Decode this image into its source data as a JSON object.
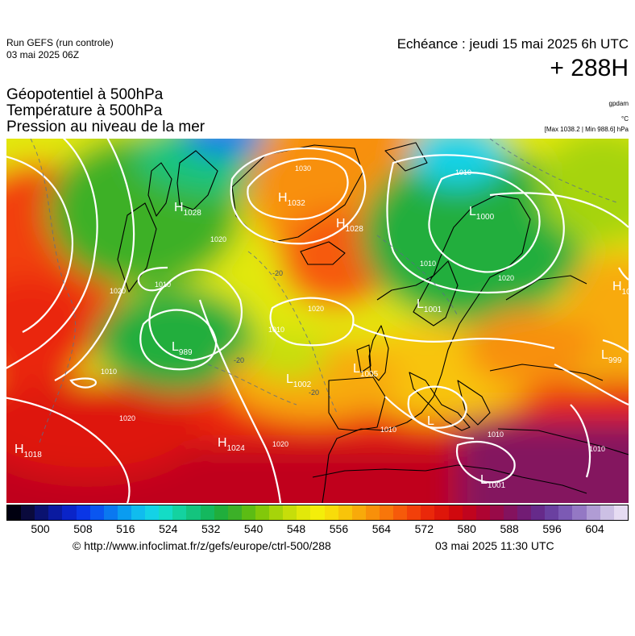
{
  "header": {
    "run_name": "Run GEFS (run controle)",
    "run_date": "03 mai 2025 06Z",
    "echeance": "Echéance : jeudi 15 mai 2025 6h UTC",
    "horizon": "+ 288H"
  },
  "titles": {
    "line1": "Géopotentiel à 500hPa",
    "line2": "Température à 500hPa",
    "line3": "Pression au niveau de la mer"
  },
  "units": {
    "geopotential": "gpdam",
    "temperature": "°C",
    "pressure": "[Max 1038.2 | Min 988.6] hPa"
  },
  "colorbar": {
    "ticks": [
      "500",
      "508",
      "516",
      "524",
      "532",
      "540",
      "548",
      "556",
      "564",
      "572",
      "580",
      "588",
      "596",
      "604"
    ],
    "colors": [
      "#000010",
      "#0a0a3c",
      "#0a1270",
      "#0a1aa0",
      "#0a24c8",
      "#0a36e6",
      "#0a56f0",
      "#0a78f0",
      "#0a9cf0",
      "#10bcee",
      "#14d2e6",
      "#14dcc6",
      "#14d2a0",
      "#14c47e",
      "#14b85e",
      "#20ae3c",
      "#3cb028",
      "#5cbc14",
      "#82c80a",
      "#a6d40a",
      "#c6de0a",
      "#e2e80a",
      "#f4ee0a",
      "#f8dc0a",
      "#f8c40a",
      "#f8aa0a",
      "#f8900a",
      "#f8760a",
      "#f65a0a",
      "#f2400a",
      "#ea280a",
      "#de160a",
      "#d0080e",
      "#c0041e",
      "#ae0432",
      "#980a48",
      "#84125e",
      "#721c74",
      "#662a8a",
      "#6a40a0",
      "#7c5ab4",
      "#9478c4",
      "#b09cd4",
      "#ccc0e4",
      "#e6dcf2"
    ]
  },
  "pressure_centers": [
    {
      "type": "H",
      "value": "1032"
    },
    {
      "type": "H",
      "value": "1028"
    },
    {
      "type": "H",
      "value": "1028"
    },
    {
      "type": "L",
      "value": "1000"
    },
    {
      "type": "L",
      "value": "989"
    },
    {
      "type": "L",
      "value": "1002"
    },
    {
      "type": "L",
      "value": "1005"
    },
    {
      "type": "L",
      "value": "1001"
    },
    {
      "type": "L",
      "value": "1001"
    },
    {
      "type": "L",
      "value": "999"
    },
    {
      "type": "H",
      "value": "10"
    },
    {
      "type": "H",
      "value": "1018"
    },
    {
      "type": "H",
      "value": "1024"
    },
    {
      "type": "L",
      "value": ""
    }
  ],
  "isobar_labels": [
    "1030",
    "1010",
    "1020",
    "1010",
    "1020",
    "1020",
    "1010",
    "1010",
    "1020",
    "1010",
    "1010",
    "1020",
    "1010",
    "1010",
    "1020"
  ],
  "temp_labels": [
    "-20",
    "-20",
    "-20"
  ],
  "footer": {
    "copyright": "© http://www.infoclimat.fr/z/gefs/europe/ctrl-500/288",
    "generated": "03 mai 2025 11:30 UTC"
  }
}
